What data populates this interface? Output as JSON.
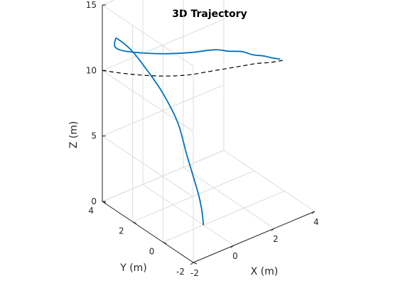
{
  "chart_data": {
    "type": "line",
    "title": "3D Trajectory",
    "xlabel": "X (m)",
    "ylabel": "Y (m)",
    "zlabel": "Z (m)",
    "xlim": [
      -2,
      4
    ],
    "ylim": [
      -2,
      4
    ],
    "zlim": [
      0,
      15
    ],
    "x_ticks": [
      "-2",
      "0",
      "2",
      "4"
    ],
    "y_ticks": [
      "-2",
      "0",
      "2",
      "4"
    ],
    "z_ticks": [
      "0",
      "5",
      "10",
      "15"
    ],
    "grid": true,
    "series": [
      {
        "style": "solid",
        "color": "#0072BD",
        "x": [
          0.0,
          0.0,
          0.0,
          0.1,
          0.3,
          0.6,
          0.6,
          0.3,
          -0.2,
          -1.0,
          -1.5,
          -1.8,
          -1.5,
          -0.5,
          0.5,
          1.5,
          2.0,
          2.5,
          2.8,
          3.2,
          3.5,
          3.8
        ],
        "y": [
          0.0,
          0.1,
          0.3,
          0.8,
          1.5,
          2.5,
          3.5,
          4.2,
          4.5,
          4.3,
          3.8,
          3.4,
          3.0,
          2.2,
          1.6,
          1.3,
          1.0,
          0.8,
          0.5,
          0.3,
          0.1,
          0.0
        ],
        "z": [
          0.0,
          1.0,
          2.0,
          3.0,
          4.0,
          5.5,
          7.0,
          8.5,
          10.0,
          11.5,
          12.2,
          12.1,
          11.9,
          11.7,
          11.6,
          11.4,
          11.2,
          11.0,
          10.8,
          10.6,
          10.4,
          10.2
        ]
      },
      {
        "style": "dashed",
        "color": "#000000",
        "x": [
          -2.0,
          -1.5,
          -1.0,
          -0.5,
          0.0,
          0.5,
          1.0,
          1.5,
          2.0,
          2.5,
          3.0,
          3.5,
          4.0
        ],
        "y": [
          4.0,
          3.3,
          2.7,
          2.2,
          1.8,
          1.5,
          1.3,
          1.1,
          0.9,
          0.7,
          0.5,
          0.2,
          0.0
        ],
        "z": [
          10.0,
          10.0,
          10.0,
          10.0,
          10.0,
          10.0,
          10.0,
          10.0,
          10.0,
          10.0,
          10.0,
          10.0,
          10.0
        ]
      }
    ]
  }
}
